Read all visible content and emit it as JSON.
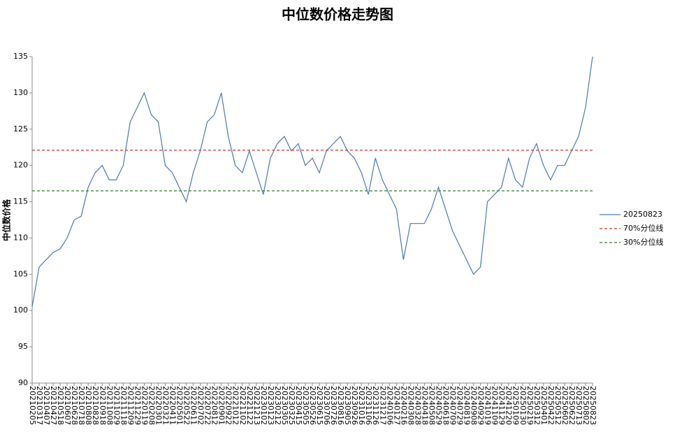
{
  "chart_data": {
    "type": "line",
    "title": "中位数价格走势图",
    "y_label": "中位数价格",
    "categories": [
      "20210205",
      "20210317",
      "20210407",
      "20210427",
      "20210518",
      "20210607",
      "20210628",
      "20210718",
      "20210808",
      "20210828",
      "20210918",
      "20211008",
      "20211029",
      "20211118",
      "20211209",
      "20211229",
      "20220119",
      "20220208",
      "20220301",
      "20220321",
      "20220411",
      "20220501",
      "20220522",
      "20220611",
      "20220702",
      "20220722",
      "20220812",
      "20220901",
      "20220922",
      "20221012",
      "20221102",
      "20221122",
      "20221213",
      "20230102",
      "20230123",
      "20230212",
      "20230305",
      "20230325",
      "20230415",
      "20230505",
      "20230526",
      "20230615",
      "20230706",
      "20230726",
      "20230816",
      "20230905",
      "20230926",
      "20231016",
      "20231106",
      "20231126",
      "20231217",
      "20240106",
      "20240127",
      "20240216",
      "20240308",
      "20240328",
      "20240418",
      "20240508",
      "20240529",
      "20240618",
      "20240709",
      "20240729",
      "20240819",
      "20240908",
      "20240929",
      "20241019",
      "20241109",
      "20241129",
      "20241220",
      "20250109",
      "20250130",
      "20250219",
      "20250312",
      "20250401",
      "20250422",
      "20250512",
      "20250602",
      "20250622",
      "20250713",
      "20250802",
      "20250823"
    ],
    "series": [
      {
        "name": "20250823",
        "color": "#4a7ab0",
        "values": [
          100.5,
          106,
          107,
          108,
          108.5,
          110,
          112.5,
          113,
          117,
          119,
          120,
          118,
          118,
          120,
          126,
          128,
          130,
          127,
          126,
          120,
          119,
          117,
          115,
          119,
          122,
          126,
          127,
          130,
          124,
          120,
          119,
          122,
          119,
          116,
          121,
          123,
          124,
          122,
          123,
          120,
          121,
          119,
          122,
          123,
          124,
          122,
          121,
          119,
          116,
          121,
          118,
          116,
          114,
          107,
          112,
          112,
          112,
          114,
          117,
          114,
          111,
          109,
          107,
          105,
          106,
          115,
          116,
          117,
          121,
          118,
          117,
          121,
          123,
          120,
          118,
          120,
          120,
          122,
          124,
          128,
          135
        ]
      }
    ],
    "reference_lines": [
      {
        "name": "70%分位线",
        "value": 122.1,
        "color": "#c0392b"
      },
      {
        "name": "30%分位线",
        "value": 116.5,
        "color": "#2e7d32"
      }
    ],
    "ylim": [
      90,
      135
    ],
    "yticks": [
      90,
      95,
      100,
      105,
      110,
      115,
      120,
      125,
      130,
      135
    ]
  }
}
